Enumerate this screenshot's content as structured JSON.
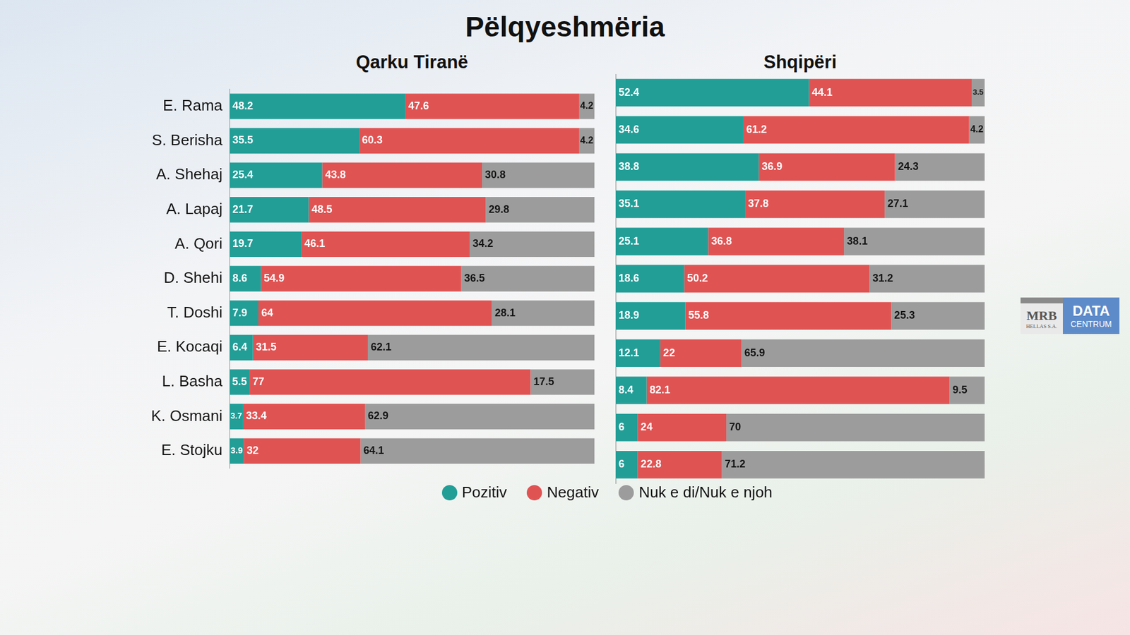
{
  "title": "Pëlqyeshmëria",
  "legend": "bottom",
  "logo": {
    "left": {
      "text": "MRB",
      "subtext": "HELLAS S.A."
    },
    "right": {
      "text": "DATA",
      "subtext": "CENTRUM"
    }
  },
  "chart_data": [
    {
      "type": "bar",
      "title": "Qarku Tiranë",
      "orientation": "horizontal",
      "stacked": true,
      "data_labels": true,
      "tick_labels": "y",
      "grid": false,
      "categories": [
        "E. Rama",
        "S. Berisha",
        "A. Shehaj",
        "A. Lapaj",
        "A. Qori",
        "D. Shehi",
        "T. Doshi",
        "E. Kocaqi",
        "L. Basha",
        "K. Osmani",
        "E. Stojku"
      ],
      "xlim": [
        0,
        100
      ],
      "series": [
        {
          "name": "Pozitiv",
          "color": "#229e97",
          "values": [
            48.2,
            35.5,
            25.4,
            21.7,
            19.7,
            8.6,
            7.9,
            6.4,
            5.5,
            3.7,
            3.9
          ]
        },
        {
          "name": "Negativ",
          "color": "#e05353",
          "values": [
            47.6,
            60.3,
            43.8,
            48.5,
            46.1,
            54.9,
            64,
            31.5,
            77,
            33.4,
            32
          ]
        },
        {
          "name": "Nuk e di/Nuk e njoh",
          "color": "#9c9c9c",
          "values": [
            4.2,
            4.2,
            30.8,
            29.8,
            34.2,
            36.5,
            28.1,
            62.1,
            17.5,
            62.9,
            64.1
          ]
        }
      ]
    },
    {
      "type": "bar",
      "title": "Shqipëri",
      "orientation": "horizontal",
      "stacked": true,
      "data_labels": true,
      "tick_labels": false,
      "grid": false,
      "categories": [
        "E. Rama",
        "S. Berisha",
        "A. Shehaj",
        "A. Lapaj",
        "A. Qori",
        "D. Shehi",
        "T. Doshi",
        "E. Kocaqi",
        "L. Basha",
        "K. Osmani",
        "E. Stojku"
      ],
      "xlim": [
        0,
        100
      ],
      "series": [
        {
          "name": "Pozitiv",
          "color": "#229e97",
          "values": [
            52.4,
            34.6,
            38.8,
            35.1,
            25.1,
            18.6,
            18.9,
            12.1,
            8.4,
            6,
            6
          ]
        },
        {
          "name": "Negativ",
          "color": "#e05353",
          "values": [
            44.1,
            61.2,
            36.9,
            37.8,
            36.8,
            50.2,
            55.8,
            22,
            82.1,
            24,
            22.8
          ]
        },
        {
          "name": "Nuk e di/Nuk e njoh",
          "color": "#9c9c9c",
          "values": [
            3.5,
            4.2,
            24.3,
            27.1,
            38.1,
            31.2,
            25.3,
            65.9,
            9.5,
            70,
            71.2
          ]
        }
      ]
    }
  ]
}
